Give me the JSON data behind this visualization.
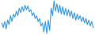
{
  "values": [
    -2.0,
    -3.5,
    -1.5,
    -4.0,
    -1.0,
    -2.5,
    0.5,
    -1.5,
    1.0,
    0.0,
    2.0,
    0.5,
    3.0,
    1.5,
    3.5,
    2.0,
    4.0,
    2.5,
    3.8,
    1.8,
    2.5,
    0.5,
    1.5,
    -0.5,
    0.5,
    -1.5,
    -0.5,
    -3.0,
    -2.0,
    -5.0,
    -1.5,
    -5.5,
    -1.0,
    -4.5,
    3.0,
    0.5,
    5.5,
    2.0,
    4.5,
    1.5,
    4.0,
    1.0,
    3.5,
    0.8,
    3.0,
    0.5,
    2.5,
    0.2,
    2.0,
    -0.5,
    1.5,
    -1.0,
    1.0,
    -0.8,
    0.5,
    -1.5,
    0.0,
    -2.0,
    -0.5,
    -2.5,
    -1.0,
    -3.0,
    -1.5,
    -3.5
  ],
  "line_color": "#2b8fd4",
  "background_color": "#ffffff",
  "linewidth": 0.75
}
